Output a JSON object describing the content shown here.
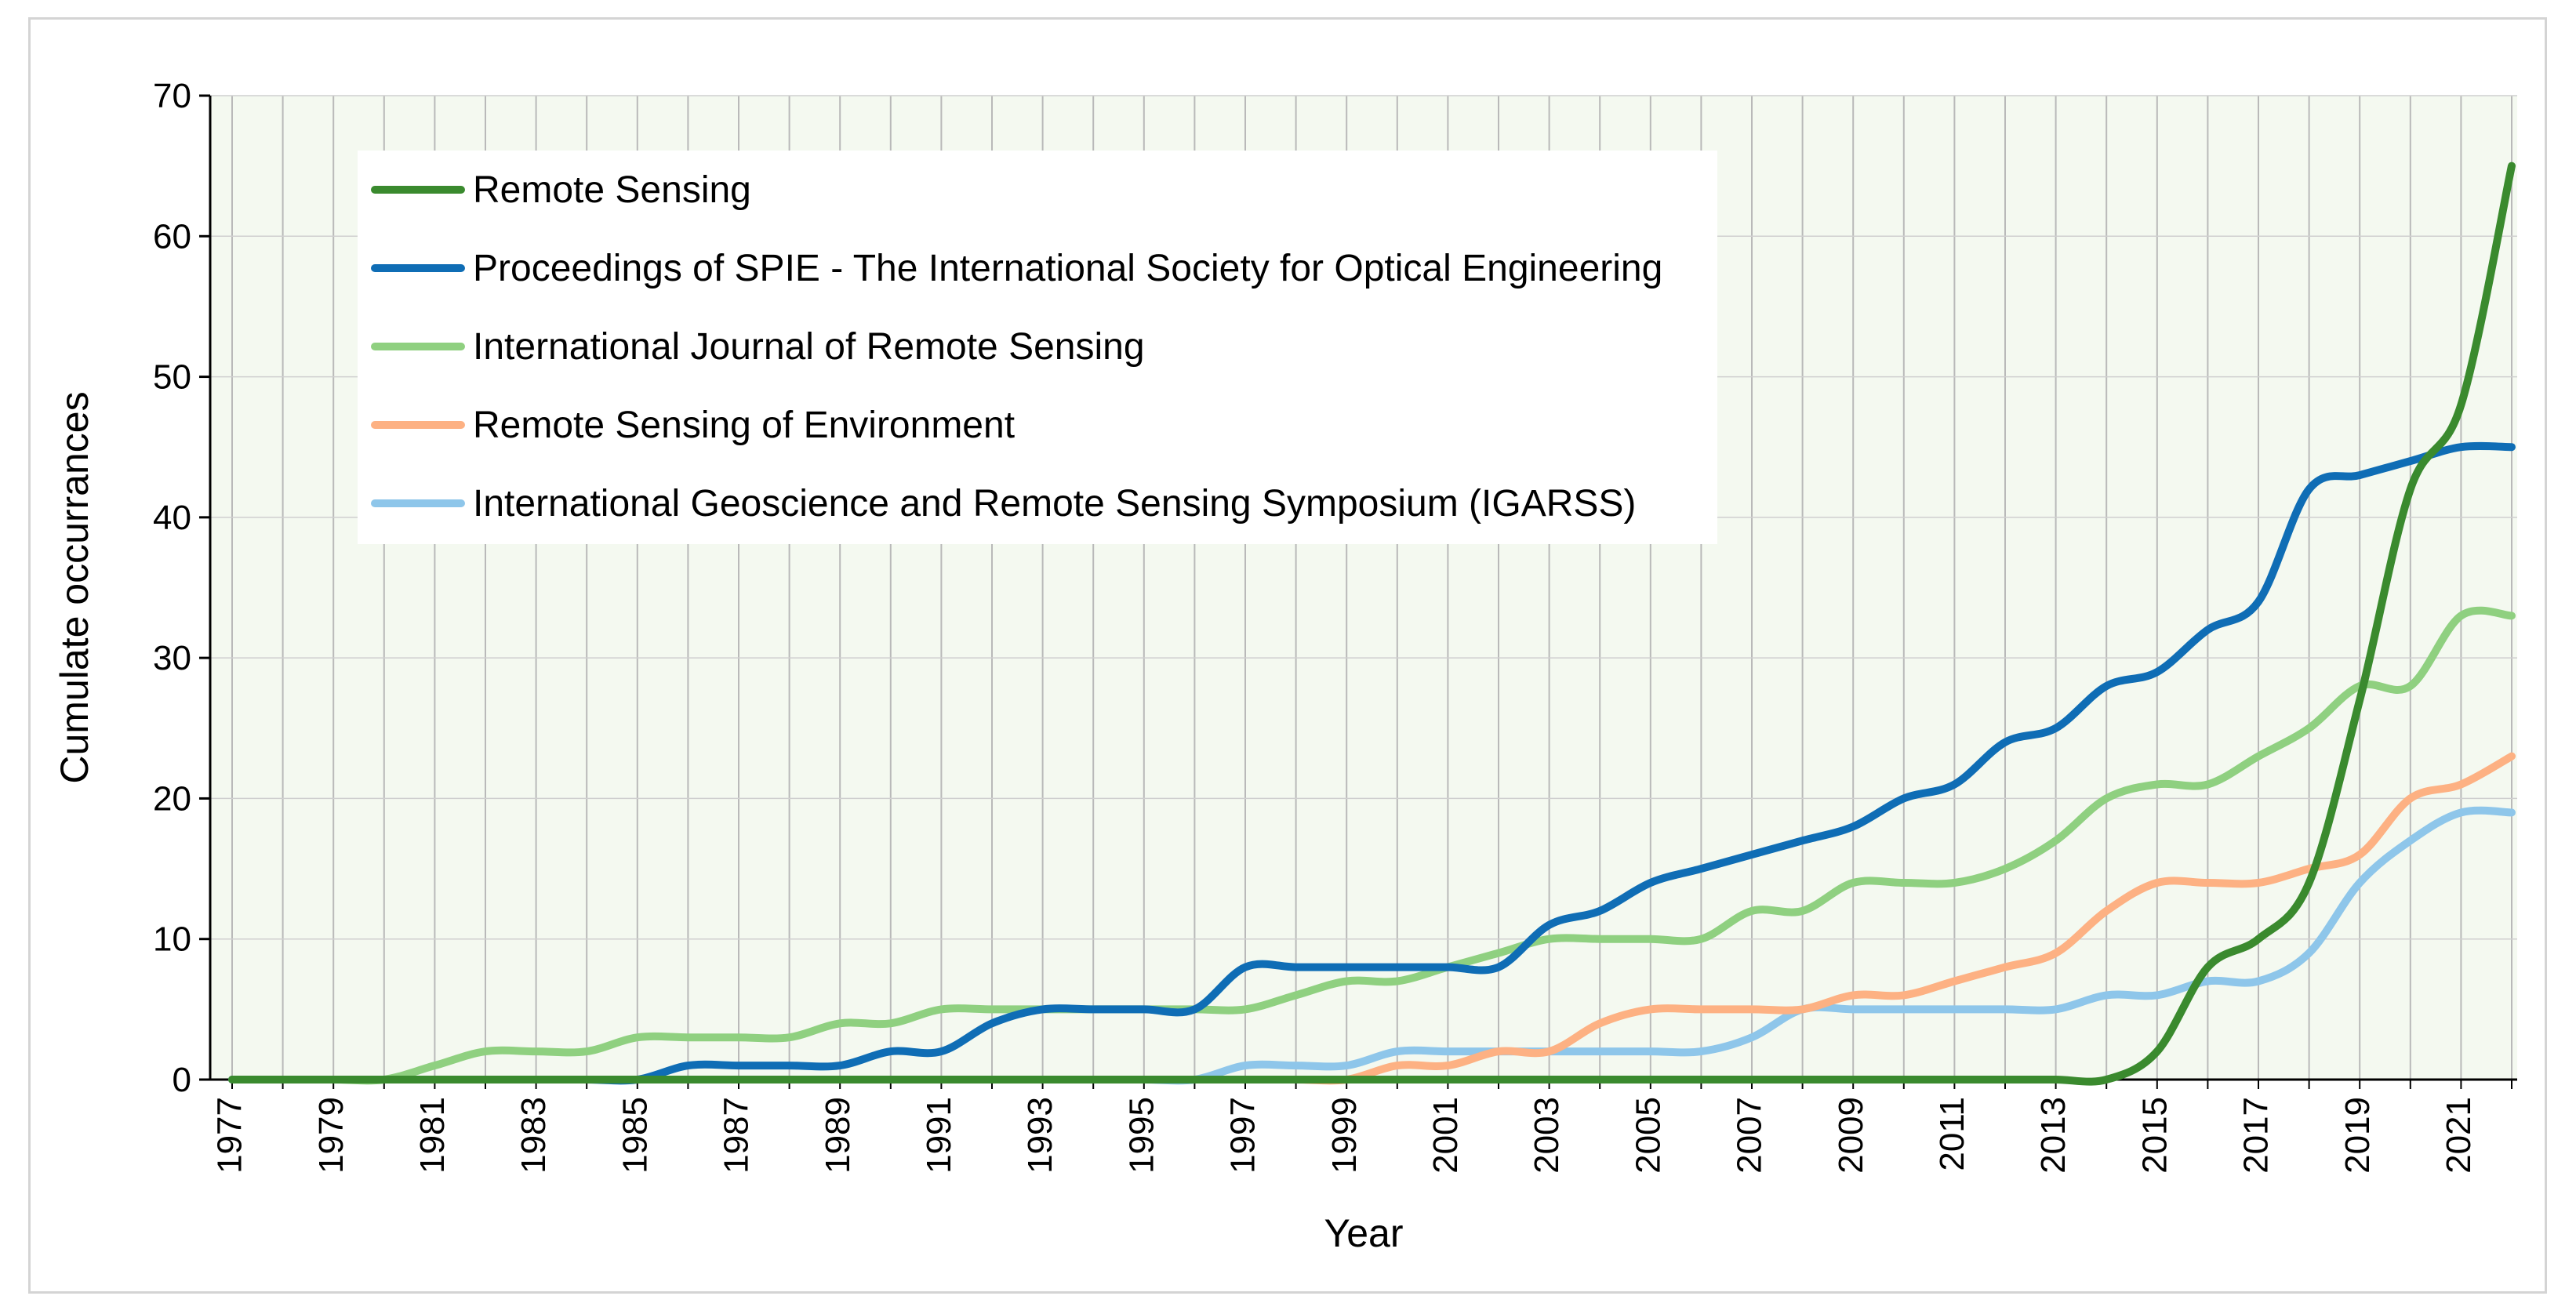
{
  "chart_data": {
    "type": "line",
    "title": "",
    "xlabel": "Year",
    "ylabel": "Cumulate occurrances",
    "ylim": [
      0,
      70
    ],
    "yticks": [
      0,
      10,
      20,
      30,
      40,
      50,
      60,
      70
    ],
    "grid": true,
    "legend_position": "top-left",
    "background_color": "#f4f9f0",
    "x": [
      1977,
      1978,
      1979,
      1980,
      1981,
      1982,
      1983,
      1984,
      1985,
      1986,
      1987,
      1988,
      1989,
      1990,
      1991,
      1992,
      1993,
      1994,
      1995,
      1996,
      1997,
      1998,
      1999,
      2000,
      2001,
      2002,
      2003,
      2004,
      2005,
      2006,
      2007,
      2008,
      2009,
      2010,
      2011,
      2012,
      2013,
      2014,
      2015,
      2016,
      2017,
      2018,
      2019,
      2020,
      2021,
      2022
    ],
    "xtick_labels": [
      "1977",
      "1979",
      "1981",
      "1983",
      "1985",
      "1987",
      "1989",
      "1991",
      "1993",
      "1995",
      "1997",
      "1999",
      "2001",
      "2003",
      "2005",
      "2007",
      "2009",
      "2011",
      "2013",
      "2015",
      "2017",
      "2019",
      "2021"
    ],
    "series": [
      {
        "name": "Remote Sensing",
        "color": "#3a8a2e",
        "values": [
          0,
          0,
          0,
          0,
          0,
          0,
          0,
          0,
          0,
          0,
          0,
          0,
          0,
          0,
          0,
          0,
          0,
          0,
          0,
          0,
          0,
          0,
          0,
          0,
          0,
          0,
          0,
          0,
          0,
          0,
          0,
          0,
          0,
          0,
          0,
          0,
          0,
          0,
          2,
          8,
          10,
          14,
          27,
          42,
          48,
          65
        ]
      },
      {
        "name": "Proceedings of SPIE - The International Society for Optical Engineering",
        "color": "#0f6db5",
        "values": [
          0,
          0,
          0,
          0,
          0,
          0,
          0,
          0,
          0,
          1,
          1,
          1,
          1,
          2,
          2,
          4,
          5,
          5,
          5,
          5,
          8,
          8,
          8,
          8,
          8,
          8,
          11,
          12,
          14,
          15,
          16,
          17,
          18,
          20,
          21,
          24,
          25,
          28,
          29,
          32,
          34,
          42,
          43,
          44,
          45,
          45
        ]
      },
      {
        "name": "International Journal of Remote Sensing",
        "color": "#8fd080",
        "values": [
          0,
          0,
          0,
          0,
          1,
          2,
          2,
          2,
          3,
          3,
          3,
          3,
          4,
          4,
          5,
          5,
          5,
          5,
          5,
          5,
          5,
          6,
          7,
          7,
          8,
          9,
          10,
          10,
          10,
          10,
          12,
          12,
          14,
          14,
          14,
          15,
          17,
          20,
          21,
          21,
          23,
          25,
          28,
          28,
          33,
          33
        ]
      },
      {
        "name": "Remote Sensing of Environment",
        "color": "#fdb183",
        "values": [
          0,
          0,
          0,
          0,
          0,
          0,
          0,
          0,
          0,
          0,
          0,
          0,
          0,
          0,
          0,
          0,
          0,
          0,
          0,
          0,
          0,
          0,
          0,
          1,
          1,
          2,
          2,
          4,
          5,
          5,
          5,
          5,
          6,
          6,
          7,
          8,
          9,
          12,
          14,
          14,
          14,
          15,
          16,
          20,
          21,
          23
        ]
      },
      {
        "name": "International Geoscience and Remote Sensing Symposium (IGARSS)",
        "color": "#8ec6ea",
        "values": [
          0,
          0,
          0,
          0,
          0,
          0,
          0,
          0,
          0,
          0,
          0,
          0,
          0,
          0,
          0,
          0,
          0,
          0,
          0,
          0,
          1,
          1,
          1,
          2,
          2,
          2,
          2,
          2,
          2,
          2,
          3,
          5,
          5,
          5,
          5,
          5,
          5,
          6,
          6,
          7,
          7,
          9,
          14,
          17,
          19,
          19
        ]
      }
    ]
  }
}
